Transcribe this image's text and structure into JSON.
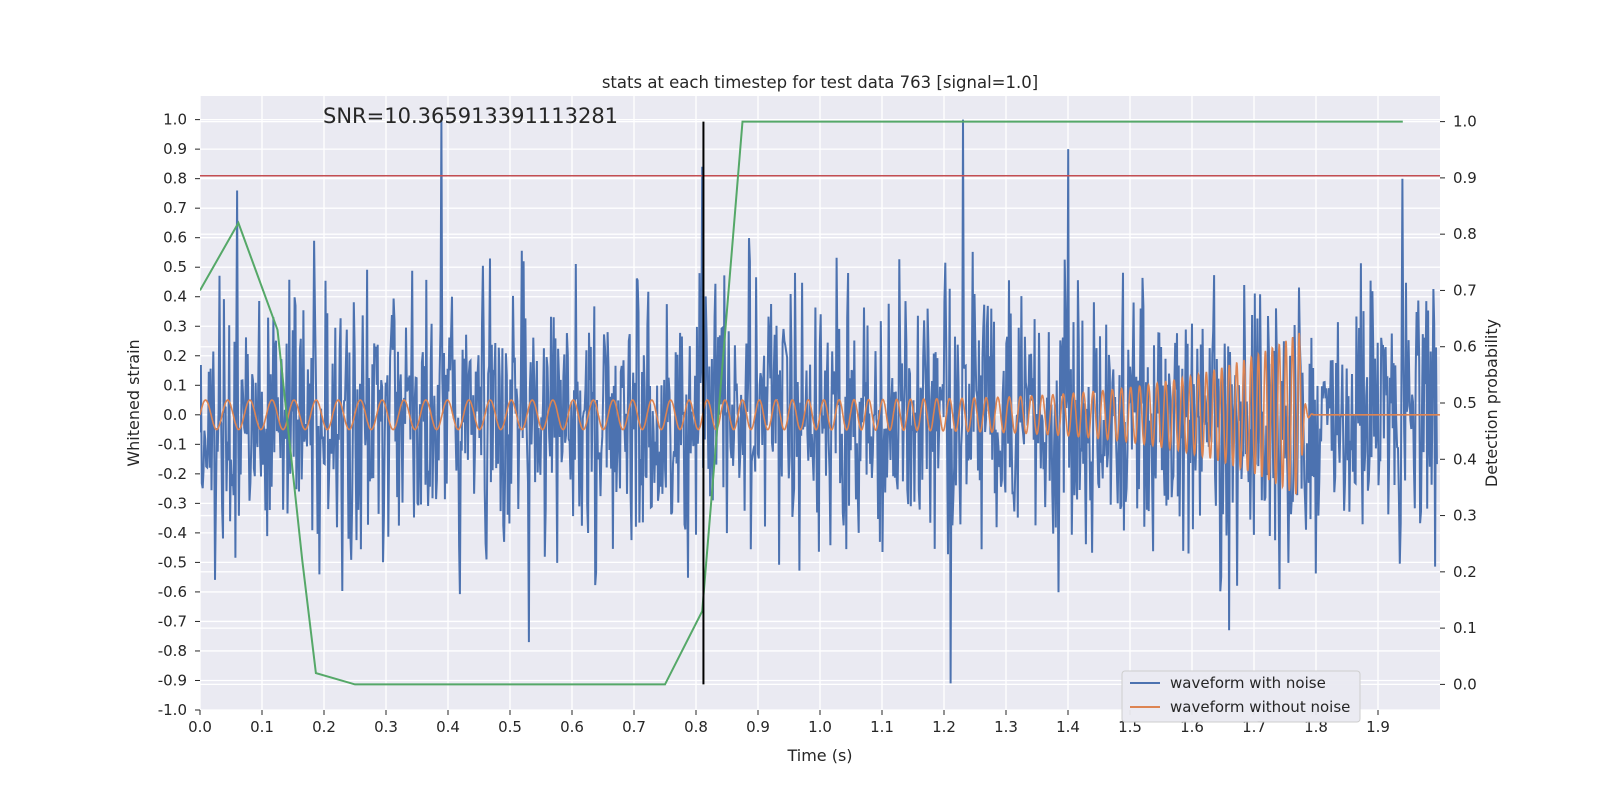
{
  "chart_data": {
    "type": "line",
    "title": "stats at each timestep for test data 763 [signal=1.0]",
    "xlabel": "Time (s)",
    "ylabel": "Whitened strain",
    "y2label": "Detection probability",
    "annotation": "SNR=10.365913391113281",
    "xlim": [
      0,
      2.0
    ],
    "ylim": [
      -1.0,
      1.08
    ],
    "y2lim": [
      -0.0455,
      1.0455
    ],
    "x_ticks": [
      "0.0",
      "0.1",
      "0.2",
      "0.3",
      "0.4",
      "0.5",
      "0.6",
      "0.7",
      "0.8",
      "0.9",
      "1.0",
      "1.1",
      "1.2",
      "1.3",
      "1.4",
      "1.5",
      "1.6",
      "1.7",
      "1.8",
      "1.9"
    ],
    "y_ticks": [
      "-1.0",
      "-0.9",
      "-0.8",
      "-0.7",
      "-0.6",
      "-0.5",
      "-0.4",
      "-0.3",
      "-0.2",
      "-0.1",
      "0.0",
      "0.1",
      "0.2",
      "0.3",
      "0.4",
      "0.5",
      "0.6",
      "0.7",
      "0.8",
      "0.9",
      "1.0"
    ],
    "y2_ticks": [
      "0.0",
      "0.1",
      "0.2",
      "0.3",
      "0.4",
      "0.5",
      "0.6",
      "0.7",
      "0.8",
      "0.9",
      "1.0"
    ],
    "legend_placement": "lower-right",
    "grid": true,
    "series": [
      {
        "name": "waveform with noise",
        "color": "#4c72b0",
        "axis": "left",
        "noise_amplitude": 0.36,
        "peaks": [
          [
            0.06,
            0.76
          ],
          [
            0.39,
            1.0
          ],
          [
            0.81,
            0.84
          ],
          [
            1.23,
            1.0
          ],
          [
            1.21,
            -0.91
          ],
          [
            1.4,
            0.9
          ],
          [
            1.94,
            0.8
          ],
          [
            0.53,
            -0.77
          ],
          [
            1.66,
            -0.73
          ]
        ]
      },
      {
        "name": "waveform without noise",
        "color": "#dd8452",
        "axis": "left",
        "chirp_amplitude_start": 0.05,
        "chirp_amplitude_peak": 0.28,
        "chirp_merger_time": 1.775,
        "chirp_freq_start": 28,
        "chirp_freq_end": 95
      },
      {
        "name": "detection probability",
        "color": "#55a868",
        "axis": "right",
        "x": [
          0.0,
          0.062,
          0.125,
          0.165,
          0.187,
          0.25,
          0.75,
          0.81,
          0.875,
          0.94,
          1.94
        ],
        "y": [
          0.7,
          0.82,
          0.63,
          0.22,
          0.02,
          0.0,
          0.0,
          0.13,
          1.0,
          1.0,
          1.0
        ]
      }
    ],
    "threshold": {
      "y": 0.81,
      "color": "#c44e52",
      "axis": "left"
    },
    "marker": {
      "x": 0.812,
      "color": "#000000"
    }
  }
}
